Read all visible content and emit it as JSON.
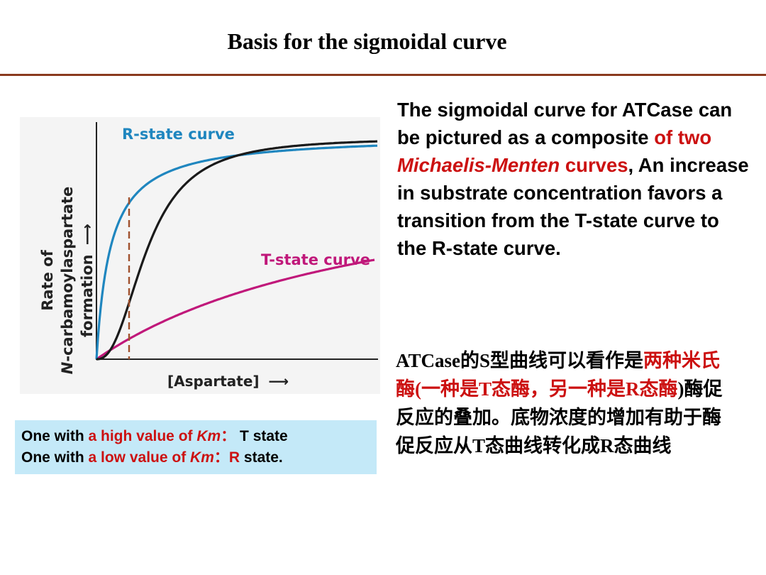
{
  "slide": {
    "title": "Basis for the sigmoidal curve"
  },
  "figure": {
    "y_axis_label_line1": "Rate of",
    "y_axis_label_line2_italic": "N",
    "y_axis_label_line2_rest": "-carbamoylaspartate",
    "y_axis_label_line3": "formation",
    "y_axis_arrow": "⟶",
    "x_axis_label": "[Aspartate]",
    "x_axis_arrow": "⟶",
    "r_state_label": "R-state curve",
    "t_state_label": "T-state curve",
    "colors": {
      "r_state": "#1f86bf",
      "t_state": "#c0187a",
      "observed": "#1a1a1a",
      "dashed_marker": "#a0512d"
    }
  },
  "description": {
    "part1": "The sigmoidal curve for ATCase can be pictured as a composite ",
    "part2_red": "of two ",
    "part3_red_italic": "Michaelis-Menten",
    "part4_red": " curves",
    "part5": ", An increase in substrate concentration favors a transition from the T-state curve to the R-state curve."
  },
  "chinese": {
    "part1": "ATCase的S型曲线可以看作是",
    "part2_red": "两种米氏酶(一种是T态酶，另一种是R态酶",
    "part3": ")酶促反应的叠加。底物浓度的增加有助于酶促反应从T态曲线转化成R态曲线"
  },
  "km_box": {
    "line1_a": "One with ",
    "line1_b_red": "a high value of ",
    "line1_c_red_italic": "Km",
    "line1_d_red": "：",
    "line1_e": " T state",
    "line2_a": "One with ",
    "line2_b_red": "a low value of ",
    "line2_c_red_italic": "Km",
    "line2_d_red": "：",
    "line2_e_red": "R",
    "line2_f": " state."
  }
}
